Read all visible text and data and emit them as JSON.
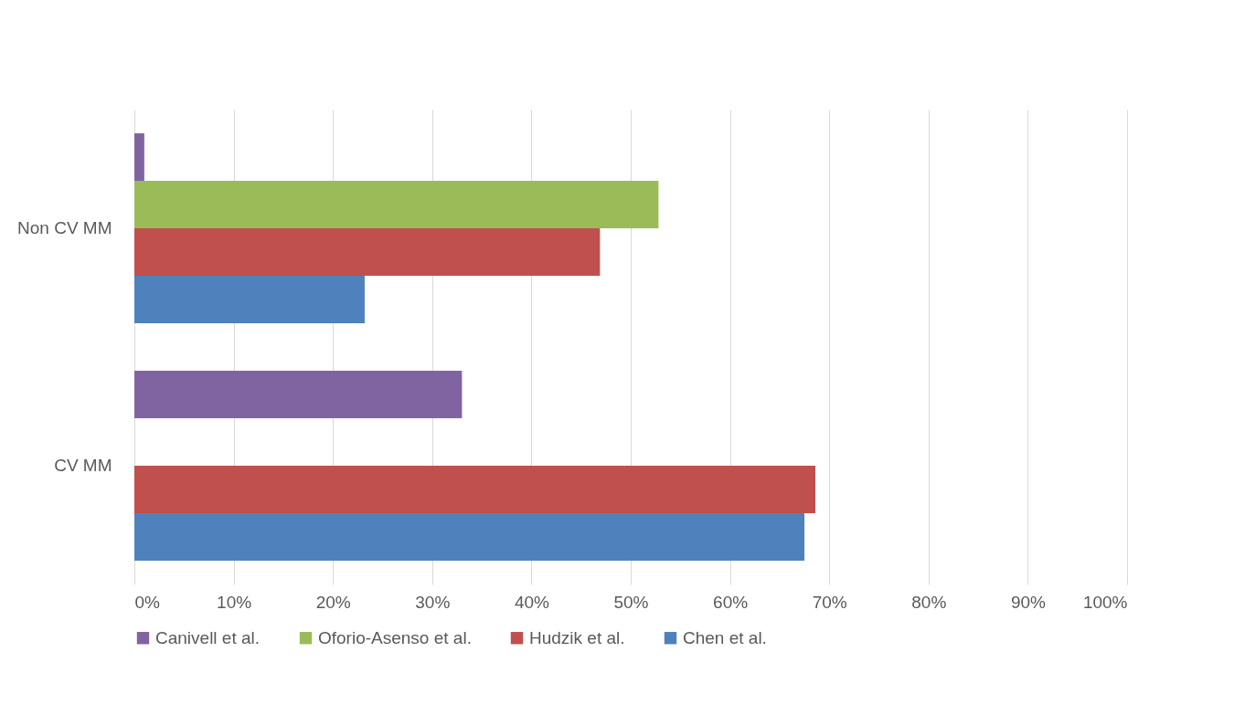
{
  "chart_data": {
    "type": "bar",
    "orientation": "horizontal",
    "categories": [
      "Non CV MM",
      "CV MM"
    ],
    "series": [
      {
        "name": "Canivell et al.",
        "color": "#8064a2",
        "values": [
          1,
          33
        ]
      },
      {
        "name": "Oforio-Asenso et al.",
        "color": "#9bbb59",
        "values": [
          52.8,
          null
        ]
      },
      {
        "name": "Hudzik et al.",
        "color": "#c0504d",
        "values": [
          46.9,
          68.6
        ]
      },
      {
        "name": "Chen et al.",
        "color": "#4f81bd",
        "values": [
          23.2,
          67.5
        ]
      }
    ],
    "xlim": [
      0,
      100
    ],
    "xticks": [
      {
        "value": 0,
        "label": "0%"
      },
      {
        "value": 10,
        "label": "10%"
      },
      {
        "value": 20,
        "label": "20%"
      },
      {
        "value": 30,
        "label": "30%"
      },
      {
        "value": 40,
        "label": "40%"
      },
      {
        "value": 50,
        "label": "50%"
      },
      {
        "value": 60,
        "label": "60%"
      },
      {
        "value": 70,
        "label": "70%"
      },
      {
        "value": 80,
        "label": "80%"
      },
      {
        "value": 90,
        "label": "90%"
      },
      {
        "value": 100,
        "label": "100%"
      }
    ],
    "grid": "x",
    "legend": "bottom"
  }
}
